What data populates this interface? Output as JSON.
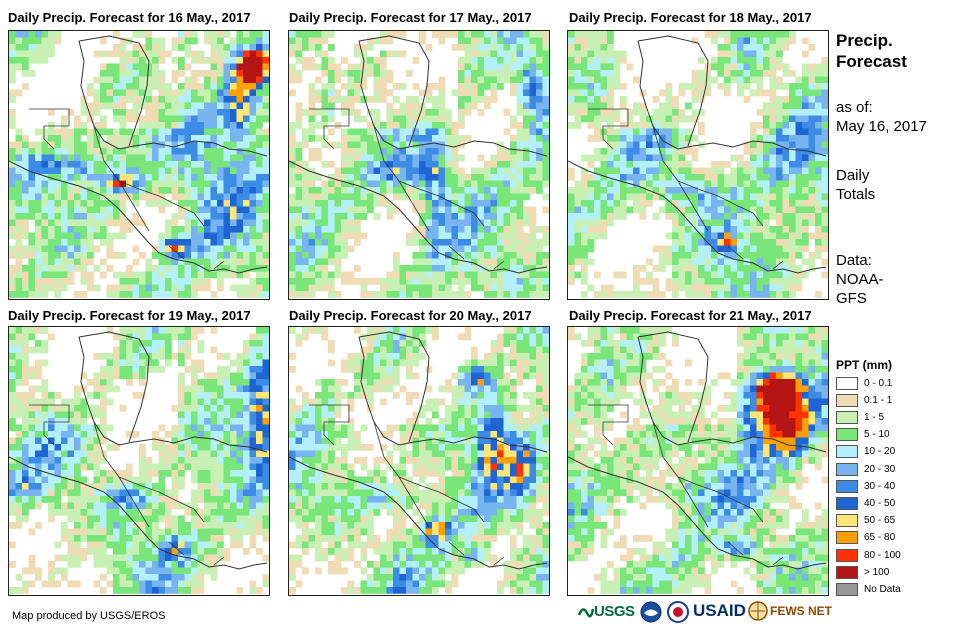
{
  "panels": [
    {
      "title": "Daily Precip. Forecast for 16 May., 2017",
      "day": 16
    },
    {
      "title": "Daily Precip. Forecast for 17 May., 2017",
      "day": 17
    },
    {
      "title": "Daily Precip. Forecast for 18 May., 2017",
      "day": 18
    },
    {
      "title": "Daily Precip. Forecast for 19 May., 2017",
      "day": 19
    },
    {
      "title": "Daily Precip. Forecast for 20 May., 2017",
      "day": 20
    },
    {
      "title": "Daily Precip. Forecast for 21 May., 2017",
      "day": 21
    }
  ],
  "info": {
    "title_line1": "Precip.",
    "title_line2": "Forecast",
    "asof_label": "as of:",
    "asof_date": "May 16, 2017",
    "totals_line1": "Daily",
    "totals_line2": "Totals",
    "data_line1": "Data:",
    "data_line2": "NOAA-",
    "data_line3": "GFS"
  },
  "legend": {
    "title": "PPT (mm)",
    "items": [
      {
        "label": "0 - 0.1",
        "color": "#ffffff"
      },
      {
        "label": "0.1 - 1",
        "color": "#f0dcb4"
      },
      {
        "label": "1 - 5",
        "color": "#c8f0b4"
      },
      {
        "label": "5 - 10",
        "color": "#78e678"
      },
      {
        "label": "10 - 20",
        "color": "#b4f0fa"
      },
      {
        "label": "20 - 30",
        "color": "#78b4f0"
      },
      {
        "label": "30 - 40",
        "color": "#3c8ce6"
      },
      {
        "label": "40 - 50",
        "color": "#1e64d2"
      },
      {
        "label": "50 - 65",
        "color": "#ffe678"
      },
      {
        "label": "65 - 80",
        "color": "#ffa000"
      },
      {
        "label": "80 - 100",
        "color": "#ff3200"
      },
      {
        "label": "> 100",
        "color": "#b41414"
      },
      {
        "label": "No Data",
        "color": "#969696"
      }
    ]
  },
  "footer": {
    "credit": "Map produced by USGS/EROS",
    "logo_usgs": "USGS",
    "logo_usaid": "USAID",
    "logo_fews": "FEWS NET"
  }
}
